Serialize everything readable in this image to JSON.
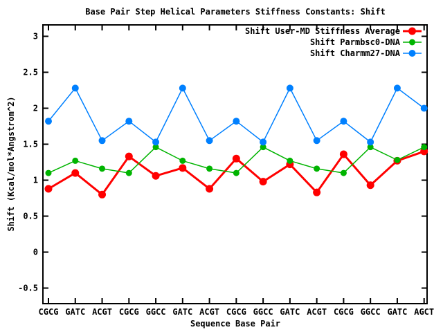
{
  "chart_data": {
    "type": "line",
    "title": "Base Pair Step Helical Parameters Stiffness Constants: Shift",
    "xlabel": "Sequence Base Pair",
    "ylabel": "Shift (Kcal/mol*Angstrom^2)",
    "categories": [
      "CGCG",
      "GATC",
      "ACGT",
      "CGCG",
      "GGCC",
      "GATC",
      "ACGT",
      "CGCG",
      "GGCC",
      "GATC",
      "ACGT",
      "CGCG",
      "GGCC",
      "GATC",
      "AGCT"
    ],
    "series": [
      {
        "name": "Shift User-MD Stiffness Average",
        "color": "#ff0000",
        "line_width": 3,
        "point_radius": 5.5,
        "values": [
          0.88,
          1.1,
          0.8,
          1.33,
          1.06,
          1.17,
          0.88,
          1.3,
          0.98,
          1.22,
          0.83,
          1.36,
          0.93,
          1.27,
          1.4
        ]
      },
      {
        "name": "Shift Parmbsc0-DNA",
        "color": "#00b400",
        "line_width": 1.5,
        "point_radius": 4.5,
        "values": [
          1.1,
          1.27,
          1.16,
          1.1,
          1.46,
          1.27,
          1.16,
          1.1,
          1.46,
          1.27,
          1.16,
          1.1,
          1.46,
          1.28,
          1.46
        ]
      },
      {
        "name": "Shift Charmm27-DNA",
        "color": "#0080ff",
        "line_width": 1.5,
        "point_radius": 5,
        "values": [
          1.82,
          2.28,
          1.55,
          1.82,
          1.53,
          2.28,
          1.55,
          1.82,
          1.53,
          2.28,
          1.55,
          1.82,
          1.53,
          2.28,
          2.0
        ]
      }
    ],
    "yticks": [
      3,
      2.5,
      2,
      1.5,
      1,
      0.5,
      0,
      -0.5
    ],
    "ytick_labels": [
      "3",
      "2.5",
      "2",
      "1.5",
      "1",
      "0.5",
      "0",
      "-0.5"
    ],
    "ylim": [
      -0.77,
      3.15
    ],
    "grid": false,
    "legend_position": "top-right-inside",
    "axis_color": "#000000",
    "background_color": "#ffffff"
  }
}
